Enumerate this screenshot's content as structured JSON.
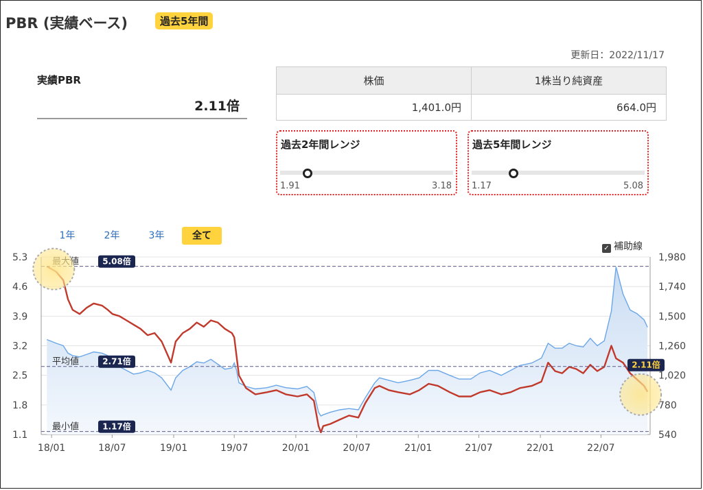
{
  "header": {
    "title": "PBR (実績ベース)",
    "period_badge": "過去5年間",
    "updated": "更新日：2022/11/17"
  },
  "summary": {
    "pbr_label": "実績PBR",
    "pbr_value": "2.11倍"
  },
  "info_table": {
    "headers": [
      "株価",
      "1株当り純資産"
    ],
    "values": [
      "1,401.0円",
      "664.0円"
    ]
  },
  "ranges": [
    {
      "title": "過去2年間レンジ",
      "min": "1.91",
      "max": "3.18",
      "current": 2.11,
      "min_value": 1.91,
      "max_value": 3.18
    },
    {
      "title": "過去5年間レンジ",
      "min": "1.17",
      "max": "5.08",
      "current": 2.11,
      "min_value": 1.17,
      "max_value": 5.08
    }
  ],
  "period_tabs": [
    "1年",
    "2年",
    "3年",
    "全て"
  ],
  "active_tab": "全て",
  "aux_line_label": "補助線",
  "colors": {
    "accent_yellow": "#ffd33d",
    "pbr_line": "#c0392b",
    "price_line": "#6aa6e8",
    "price_fill": "#dbe7f7",
    "badge_navy": "#1a2550",
    "range_border": "#e02020"
  },
  "chart_data": {
    "type": "line",
    "x_ticks": [
      "18/01",
      "18/07",
      "19/01",
      "19/07",
      "20/01",
      "20/07",
      "21/01",
      "21/07",
      "22/01",
      "22/07"
    ],
    "y_left_ticks": [
      "5.3",
      "4.6",
      "3.9",
      "3.2",
      "2.5",
      "1.8",
      "1.1"
    ],
    "y_right_ticks": [
      "1,980",
      "1,740",
      "1,500",
      "1,260",
      "1,020",
      "780",
      "540"
    ],
    "ylim_left": [
      1.1,
      5.3
    ],
    "ylim_right": [
      540,
      1980
    ],
    "grid": true,
    "reference_lines": [
      {
        "label": "最大値",
        "badge": "5.08倍",
        "value": 5.08
      },
      {
        "label": "平均値",
        "badge": "2.71倍",
        "value": 2.71
      },
      {
        "label": "最小値",
        "badge": "1.17倍",
        "value": 1.17
      }
    ],
    "current_badge": "2.11倍",
    "series": [
      {
        "axis": "left",
        "x": [
          "2017-12-18",
          "2018-01-15",
          "2018-02-05",
          "2018-02-19",
          "2018-03-05",
          "2018-03-26",
          "2018-04-16",
          "2018-05-07",
          "2018-06-01",
          "2018-06-18",
          "2018-07-02",
          "2018-07-23",
          "2018-08-13",
          "2018-09-03",
          "2018-09-24",
          "2018-10-15",
          "2018-11-05",
          "2018-11-26",
          "2018-12-24",
          "2019-01-07",
          "2019-01-28",
          "2019-02-18",
          "2019-03-11",
          "2019-04-01",
          "2019-04-22",
          "2019-05-13",
          "2019-06-03",
          "2019-06-24",
          "2019-07-01",
          "2019-07-08",
          "2019-07-15",
          "2019-08-05",
          "2019-09-02",
          "2019-10-07",
          "2019-11-04",
          "2019-12-02",
          "2020-01-06",
          "2020-02-03",
          "2020-02-24",
          "2020-03-09",
          "2020-03-16",
          "2020-03-23",
          "2020-04-13",
          "2020-05-11",
          "2020-06-08",
          "2020-07-06",
          "2020-07-27",
          "2020-08-24",
          "2020-09-07",
          "2020-10-05",
          "2020-11-02",
          "2020-12-07",
          "2021-01-04",
          "2021-02-01",
          "2021-03-01",
          "2021-04-05",
          "2021-05-03",
          "2021-06-07",
          "2021-07-05",
          "2021-08-02",
          "2021-09-06",
          "2021-10-04",
          "2021-11-01",
          "2021-12-06",
          "2022-01-04",
          "2022-01-24",
          "2022-02-14",
          "2022-03-07",
          "2022-03-28",
          "2022-04-18",
          "2022-05-09",
          "2022-05-30",
          "2022-06-20",
          "2022-07-11",
          "2022-08-01",
          "2022-08-15",
          "2022-09-05",
          "2022-09-26",
          "2022-10-17",
          "2022-11-07",
          "2022-11-17"
        ],
        "values": [
          5.08,
          4.95,
          4.75,
          4.3,
          4.05,
          3.95,
          4.1,
          4.2,
          4.15,
          4.05,
          3.95,
          3.9,
          3.8,
          3.7,
          3.6,
          3.45,
          3.5,
          3.3,
          2.8,
          3.3,
          3.5,
          3.6,
          3.75,
          3.65,
          3.8,
          3.75,
          3.6,
          3.5,
          3.4,
          2.95,
          2.5,
          2.2,
          2.05,
          2.1,
          2.15,
          2.05,
          2.0,
          2.05,
          1.9,
          1.3,
          1.15,
          1.3,
          1.35,
          1.45,
          1.55,
          1.5,
          1.85,
          2.2,
          2.25,
          2.15,
          2.1,
          2.05,
          2.15,
          2.3,
          2.25,
          2.1,
          2.0,
          2.0,
          2.1,
          2.15,
          2.05,
          2.1,
          2.2,
          2.25,
          2.35,
          2.8,
          2.6,
          2.55,
          2.7,
          2.65,
          2.55,
          2.75,
          2.6,
          2.7,
          3.2,
          2.9,
          2.8,
          2.55,
          2.4,
          2.25,
          2.11
        ]
      },
      {
        "axis": "right",
        "x": [
          "2017-12-18",
          "2018-01-15",
          "2018-02-05",
          "2018-02-19",
          "2018-03-05",
          "2018-03-26",
          "2018-04-16",
          "2018-05-07",
          "2018-06-01",
          "2018-06-18",
          "2018-07-02",
          "2018-07-23",
          "2018-08-13",
          "2018-09-03",
          "2018-09-24",
          "2018-10-15",
          "2018-11-05",
          "2018-11-26",
          "2018-12-24",
          "2019-01-07",
          "2019-01-28",
          "2019-02-18",
          "2019-03-11",
          "2019-04-01",
          "2019-04-22",
          "2019-05-13",
          "2019-06-03",
          "2019-06-24",
          "2019-07-01",
          "2019-07-08",
          "2019-07-15",
          "2019-08-05",
          "2019-09-02",
          "2019-10-07",
          "2019-11-04",
          "2019-12-02",
          "2020-01-06",
          "2020-02-03",
          "2020-02-24",
          "2020-03-09",
          "2020-03-16",
          "2020-03-23",
          "2020-04-13",
          "2020-05-11",
          "2020-06-08",
          "2020-07-06",
          "2020-07-27",
          "2020-08-24",
          "2020-09-07",
          "2020-10-05",
          "2020-11-02",
          "2020-12-07",
          "2021-01-04",
          "2021-02-01",
          "2021-03-01",
          "2021-04-05",
          "2021-05-03",
          "2021-06-07",
          "2021-07-05",
          "2021-08-02",
          "2021-09-06",
          "2021-10-04",
          "2021-11-01",
          "2021-12-06",
          "2022-01-04",
          "2022-01-24",
          "2022-02-14",
          "2022-03-07",
          "2022-03-28",
          "2022-04-18",
          "2022-05-09",
          "2022-05-30",
          "2022-06-20",
          "2022-07-11",
          "2022-08-01",
          "2022-08-15",
          "2022-09-05",
          "2022-09-26",
          "2022-10-17",
          "2022-11-07",
          "2022-11-17"
        ],
        "values": [
          1310,
          1280,
          1260,
          1200,
          1180,
          1170,
          1190,
          1210,
          1200,
          1180,
          1130,
          1090,
          1060,
          1030,
          1040,
          1060,
          1040,
          1000,
          900,
          1000,
          1060,
          1090,
          1130,
          1120,
          1150,
          1110,
          1070,
          1080,
          1120,
          1060,
          960,
          930,
          910,
          920,
          940,
          920,
          910,
          930,
          880,
          720,
          690,
          700,
          720,
          740,
          750,
          740,
          840,
          960,
          1000,
          980,
          960,
          980,
          1000,
          1060,
          1060,
          1020,
          990,
          990,
          1040,
          1060,
          1020,
          1060,
          1100,
          1120,
          1160,
          1280,
          1240,
          1240,
          1280,
          1260,
          1250,
          1320,
          1260,
          1300,
          1540,
          1900,
          1680,
          1550,
          1520,
          1470,
          1410
        ]
      }
    ]
  }
}
